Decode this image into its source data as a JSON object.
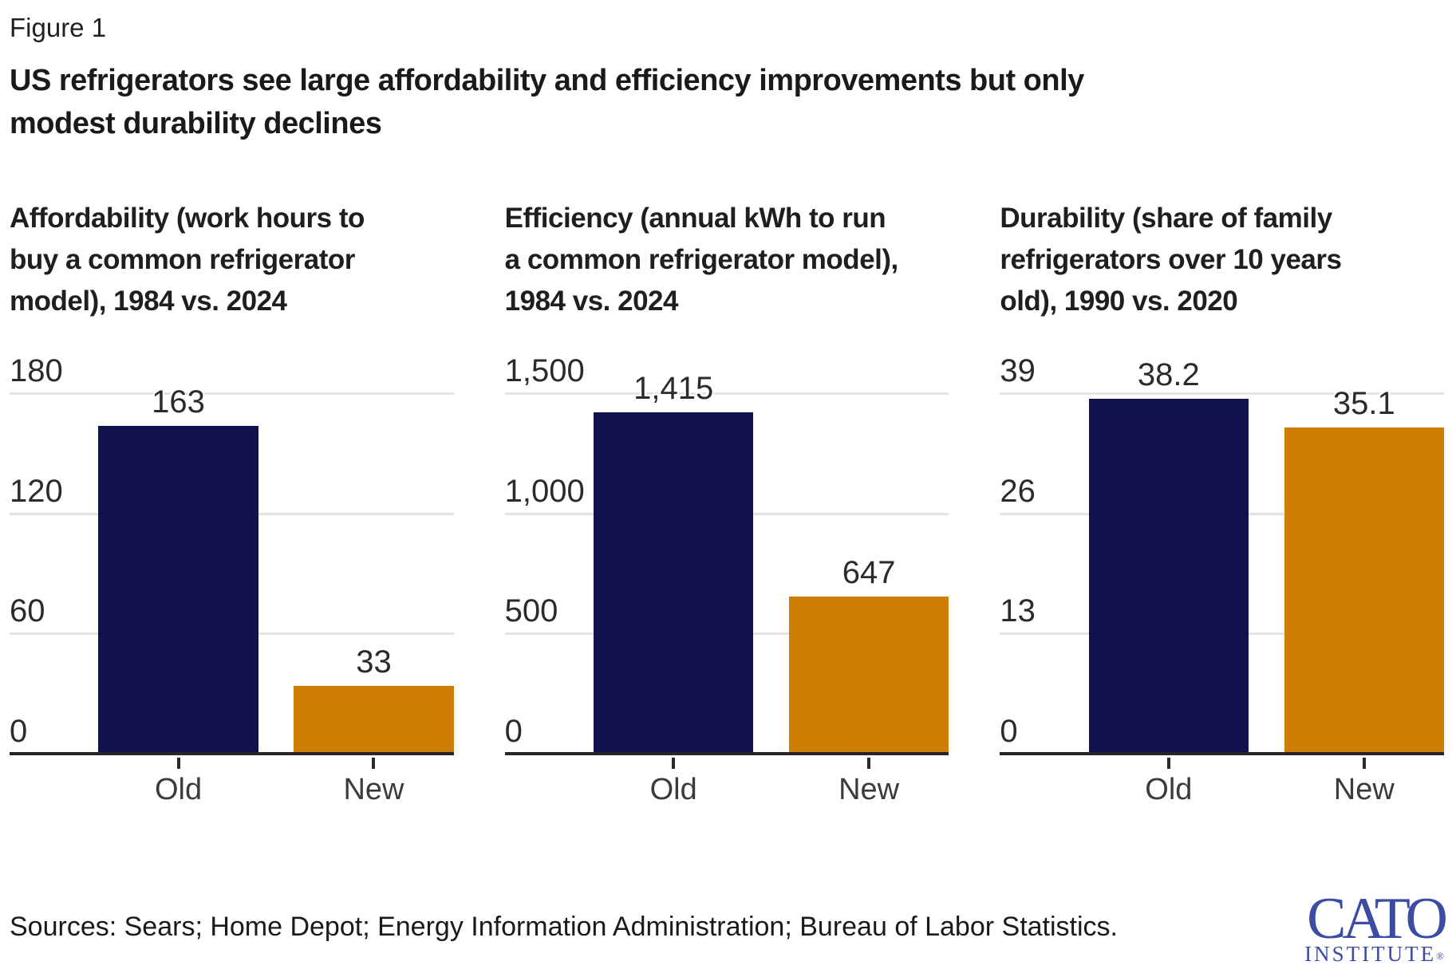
{
  "header": {
    "figure_label": "Figure 1",
    "title": "US refrigerators see large affordability and efficiency improvements but only modest durability declines",
    "title_line1": "US refrigerators see large affordability and efficiency improvements but only",
    "title_line2": "modest durability declines"
  },
  "colors": {
    "old_bar": "#11114e",
    "new_bar": "#cd7c04",
    "gridline": "#e3e3e3",
    "axis": "#262626",
    "logo_blue": "#3c4ca4"
  },
  "chart_data": [
    {
      "type": "bar",
      "title": "Affordability (work hours to buy a common refrigerator model), 1984 vs. 2024",
      "title_lines": [
        "Affordability (work hours to",
        "buy a common refrigerator",
        "model), 1984 vs. 2024"
      ],
      "categories": [
        "Old",
        "New"
      ],
      "values": [
        163,
        33
      ],
      "value_labels": [
        "163",
        "33"
      ],
      "yticks": [
        0,
        60,
        120,
        180
      ],
      "ytick_labels": [
        "0",
        "60",
        "120",
        "180"
      ],
      "ylim": [
        0,
        180
      ],
      "bar_colors": [
        "#11114e",
        "#cd7c04"
      ],
      "grid": "horizontal",
      "value_label_position": "above-bars"
    },
    {
      "type": "bar",
      "title": "Efficiency (annual kWh to run a common refrigerator model), 1984 vs. 2024",
      "title_lines": [
        "Efficiency (annual kWh to run",
        "a common refrigerator model),",
        "1984 vs. 2024"
      ],
      "categories": [
        "Old",
        "New"
      ],
      "values": [
        1415,
        647
      ],
      "value_labels": [
        "1,415",
        "647"
      ],
      "yticks": [
        0,
        500,
        1000,
        1500
      ],
      "ytick_labels": [
        "0",
        "500",
        "1,000",
        "1,500"
      ],
      "ylim": [
        0,
        1500
      ],
      "bar_colors": [
        "#11114e",
        "#cd7c04"
      ],
      "grid": "horizontal",
      "value_label_position": "above-bars"
    },
    {
      "type": "bar",
      "title": "Durability (share of family refrigerators over 10 years old), 1990 vs. 2020",
      "title_lines": [
        "Durability (share of family",
        "refrigerators over 10 years",
        "old), 1990 vs. 2020"
      ],
      "categories": [
        "Old",
        "New"
      ],
      "values": [
        38.2,
        35.1
      ],
      "value_labels": [
        "38.2",
        "35.1"
      ],
      "yticks": [
        0,
        13,
        26,
        39
      ],
      "ytick_labels": [
        "0",
        "13",
        "26",
        "39"
      ],
      "ylim": [
        0,
        39
      ],
      "bar_colors": [
        "#11114e",
        "#cd7c04"
      ],
      "grid": "horizontal",
      "value_label_position": "above-bars"
    }
  ],
  "footer": {
    "sources": "Sources: Sears; Home Depot; Energy Information Administration; Bureau of Labor Statistics."
  },
  "logo": {
    "wordmark": "CATO",
    "subtext": "INSTITUTE",
    "registered": "®"
  }
}
